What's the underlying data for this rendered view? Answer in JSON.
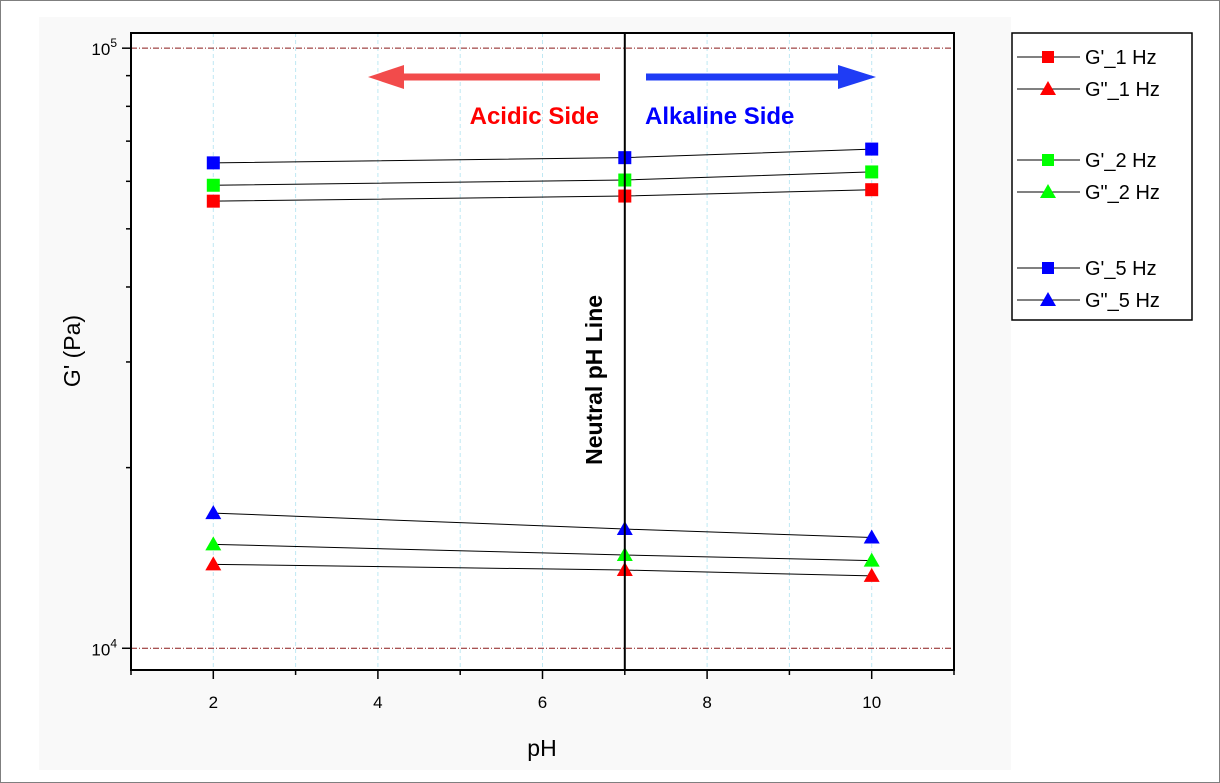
{
  "chart_data": {
    "type": "scatter",
    "xlabel": "pH",
    "ylabel": "G' (Pa)",
    "xlim": [
      1,
      11
    ],
    "ylim": [
      9200,
      106000
    ],
    "y_scale": "log",
    "x_ticks": [
      2,
      4,
      6,
      8,
      10
    ],
    "y_ticks": [
      {
        "value": 10000,
        "base": "10",
        "exp": "4"
      },
      {
        "value": 100000,
        "base": "10",
        "exp": "5"
      }
    ],
    "x_grid": true,
    "series": [
      {
        "name": "G'_1 Hz",
        "marker": "square",
        "color": "#ff0000",
        "x": [
          2,
          7,
          10
        ],
        "values": [
          55600,
          56700,
          58100
        ]
      },
      {
        "name": "G\"_1 Hz",
        "marker": "triangle",
        "color": "#ff0000",
        "x": [
          2,
          7,
          10
        ],
        "values": [
          13800,
          13500,
          13200
        ]
      },
      {
        "name": "G'_2 Hz",
        "marker": "square",
        "color": "#00ff00",
        "x": [
          2,
          7,
          10
        ],
        "values": [
          59100,
          60300,
          62200
        ]
      },
      {
        "name": "G\"_2 Hz",
        "marker": "triangle",
        "color": "#00ff00",
        "x": [
          2,
          7,
          10
        ],
        "values": [
          14900,
          14300,
          14000
        ]
      },
      {
        "name": "G'_5 Hz",
        "marker": "square",
        "color": "#0000ff",
        "x": [
          2,
          7,
          10
        ],
        "values": [
          64400,
          65700,
          67900
        ]
      },
      {
        "name": "G\"_5 Hz",
        "marker": "triangle",
        "color": "#0000ff",
        "x": [
          2,
          7,
          10
        ],
        "values": [
          16800,
          15800,
          15300
        ]
      }
    ],
    "annotations": {
      "neutral_line": {
        "x": 7,
        "label": "Neutral pH Line"
      },
      "acidic": {
        "label": "Acidic Side",
        "color": "#f24b4b"
      },
      "alkaline": {
        "label": "Alkaline Side",
        "color": "#1f3cf5"
      }
    },
    "legend": {
      "placement": "outside-right-top",
      "items": [
        "G'_1 Hz",
        "G\"_1 Hz",
        "G'_2 Hz",
        "G\"_2 Hz",
        "G'_5 Hz",
        "G\"_5 Hz"
      ]
    }
  }
}
